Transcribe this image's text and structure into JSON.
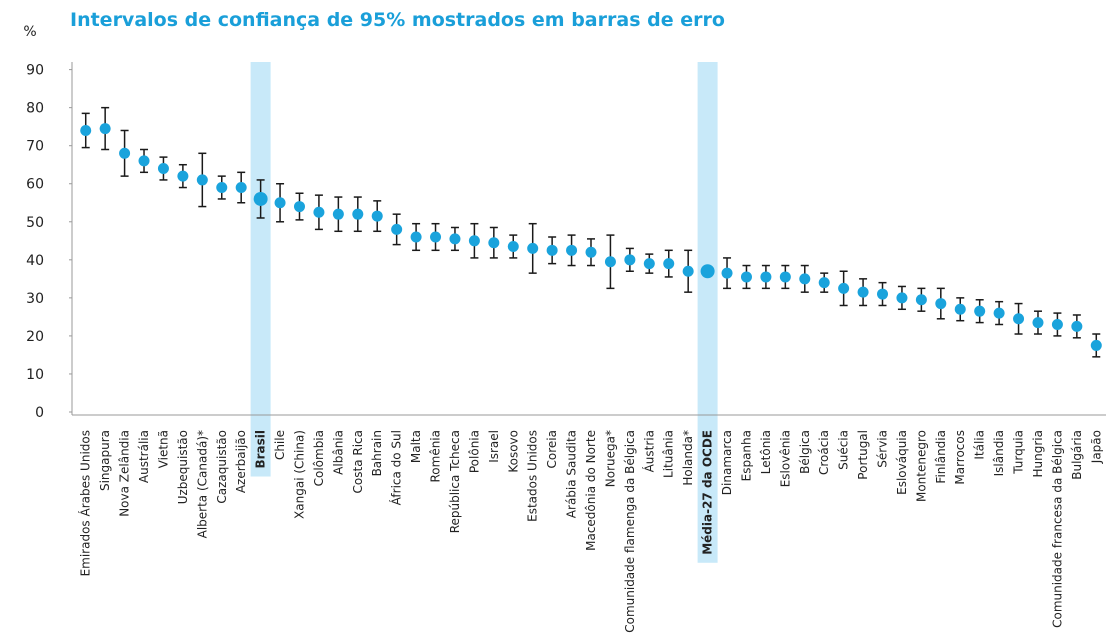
{
  "chart_data": {
    "type": "errorbar",
    "title": "Intervalos de confiança de 95% mostrados em barras de erro",
    "y_axis_label": "%",
    "categories": [
      "Emirados Árabes Unidos",
      "Singapura",
      "Nova Zelândia",
      "Austrália",
      "Vietnã",
      "Uzbequistão",
      "Alberta (Canadá)*",
      "Cazaquistão",
      "Azerbaijão",
      "Brasil",
      "Chile",
      "Xangai (China)",
      "Colômbia",
      "Albânia",
      "Costa Rica",
      "Bahrain",
      "África do Sul",
      "Malta",
      "Romênia",
      "República Tcheca",
      "Polônia",
      "Israel",
      "Kosovo",
      "Estados Unidos",
      "Coreia",
      "Arábia Saudita",
      "Macedônia do Norte",
      "Noruega*",
      "Comunidade flamenga da Bélgica",
      "Áustria",
      "Lituânia",
      "Holanda*",
      "Média-27 da OCDE",
      "Dinamarca",
      "Espanha",
      "Letônia",
      "Eslovênia",
      "Bélgica",
      "Croácia",
      "Suécia",
      "Portugal",
      "Sérvia",
      "Eslováquia",
      "Montenegro",
      "Finlândia",
      "Marrocos",
      "Itália",
      "Islândia",
      "Turquia",
      "Hungria",
      "Comunidade francesa da Bélgica",
      "Bulgária",
      "Japão"
    ],
    "values": [
      74,
      74.5,
      68,
      66,
      64,
      62,
      61,
      59,
      59,
      56,
      55,
      54,
      52.5,
      52,
      52,
      51.5,
      48,
      46,
      46,
      45.5,
      45,
      44.5,
      43.5,
      43,
      42.5,
      42.5,
      42,
      39.5,
      40,
      39,
      39,
      37,
      37,
      36.5,
      35.5,
      35.5,
      35.5,
      35,
      34,
      32.5,
      31.5,
      31,
      30,
      29.5,
      28.5,
      27,
      26.5,
      26,
      24.5,
      23.5,
      23,
      22.5,
      17.5
    ],
    "errors": [
      4.5,
      5.5,
      6,
      3,
      3,
      3,
      7,
      3,
      4,
      5,
      5,
      3.5,
      4.5,
      4.5,
      4.5,
      4,
      4,
      3.5,
      3.5,
      3,
      4.5,
      4,
      3,
      6.5,
      3.5,
      4,
      3.5,
      7,
      3,
      2.5,
      3.5,
      5.5,
      0,
      4,
      3,
      3,
      3,
      3.5,
      2.5,
      4.5,
      3.5,
      3,
      3,
      3,
      4,
      3,
      3,
      3,
      4,
      3,
      3,
      3,
      3
    ],
    "color": "#1aa3dc",
    "error_color": "#1a1a1a",
    "highlight_color": "#c8e9f9",
    "highlight": [
      9,
      32
    ],
    "ylim": [
      0,
      92
    ],
    "yticks": [
      0,
      10,
      20,
      30,
      40,
      50,
      60,
      70,
      80,
      90
    ]
  }
}
